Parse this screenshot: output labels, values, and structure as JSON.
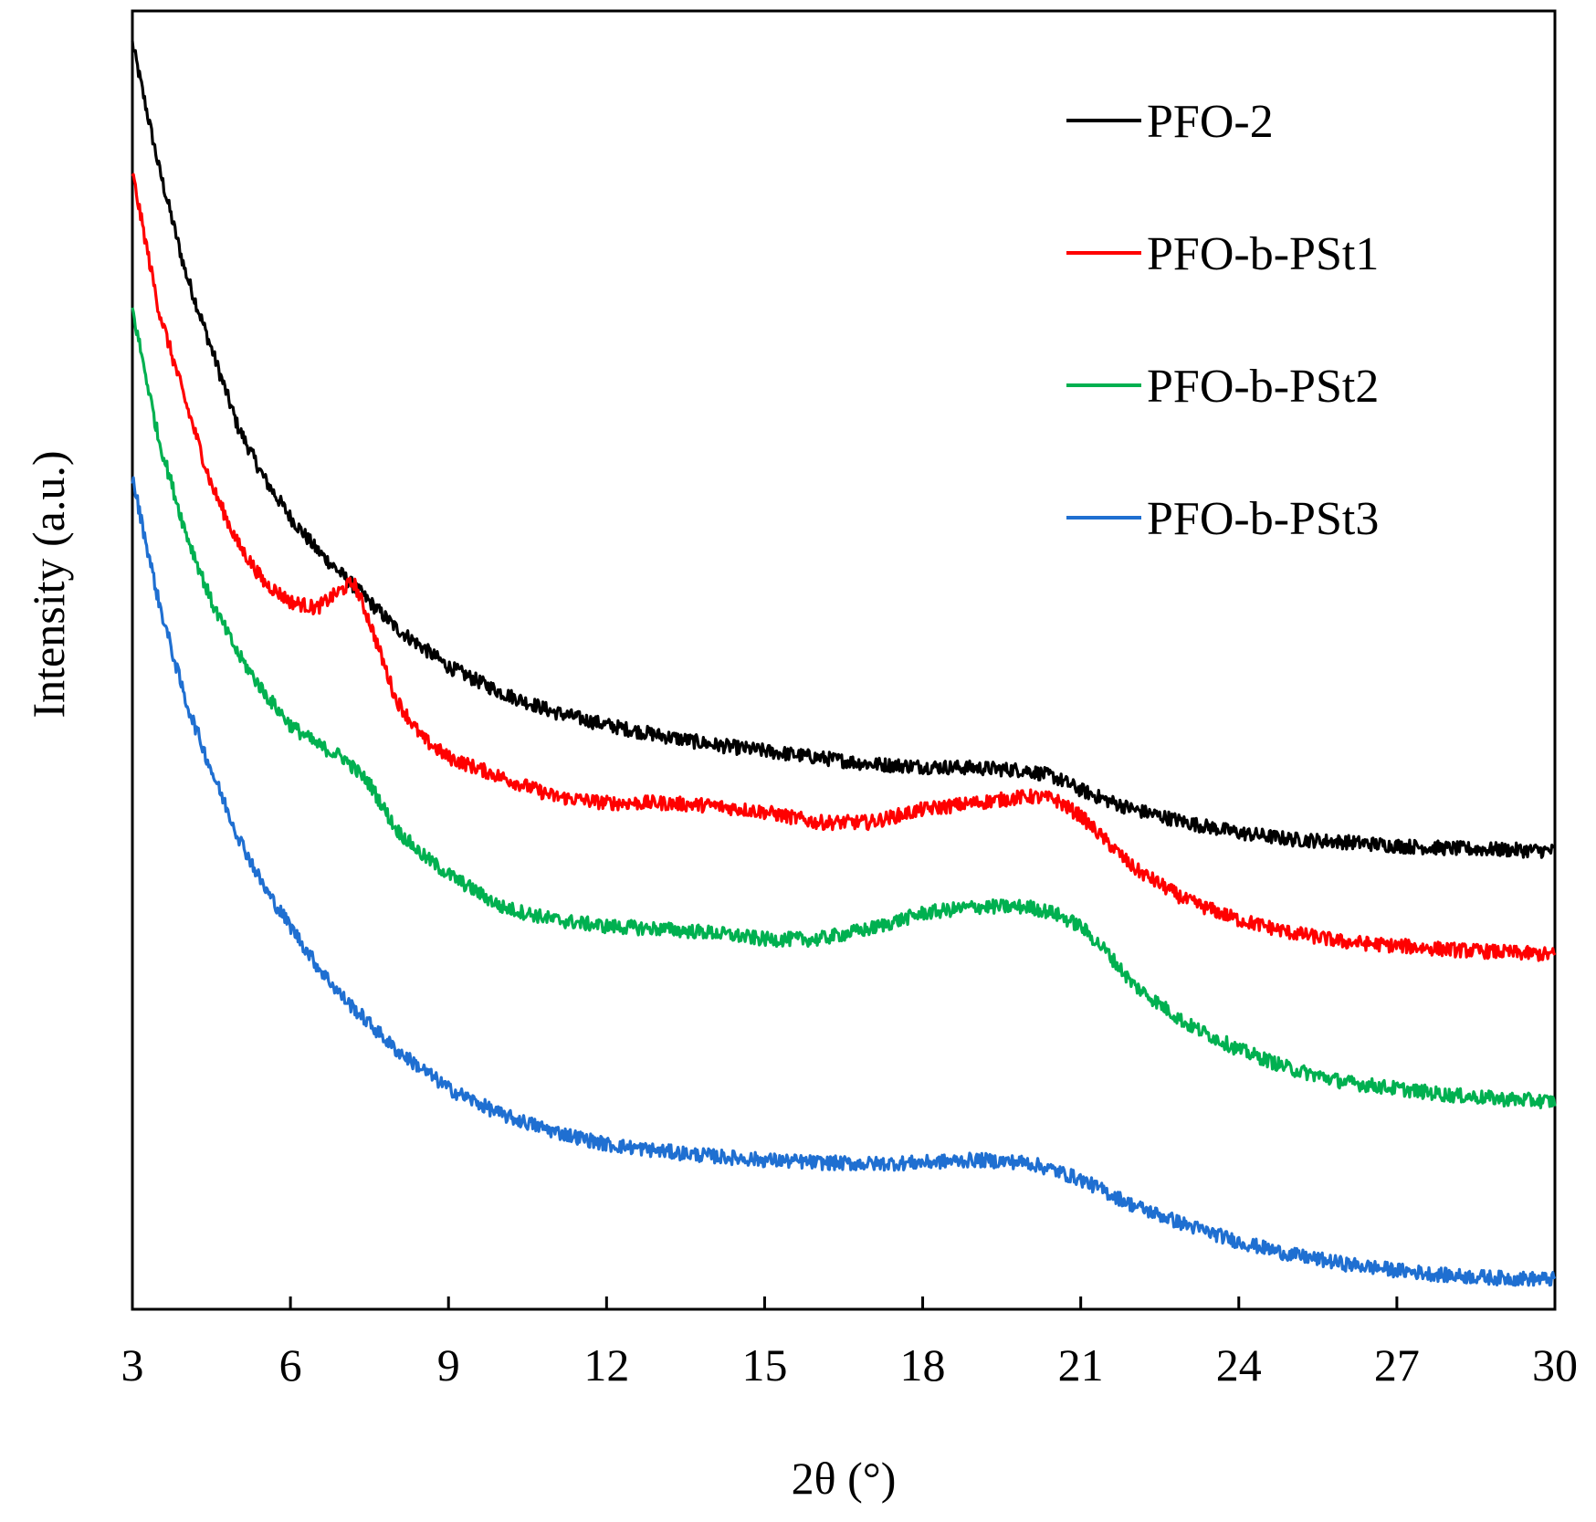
{
  "chart_data": {
    "type": "line",
    "title": "",
    "xlabel": "2θ (°)",
    "ylabel": "Intensity (a.u.)",
    "xlim": [
      3,
      30
    ],
    "ylim": [
      0,
      1
    ],
    "x_ticks": [
      3,
      6,
      9,
      12,
      15,
      18,
      21,
      24,
      27,
      30
    ],
    "x_tick_labels": [
      "3",
      "6",
      "9",
      "12",
      "15",
      "18",
      "21",
      "24",
      "27",
      "30"
    ],
    "y_ticks_shown": false,
    "grid": false,
    "legend_position": "top-right",
    "series": [
      {
        "name": "PFO-2",
        "color": "#000000",
        "x": [
          3,
          3.5,
          4,
          4.5,
          5,
          5.5,
          6,
          6.5,
          7,
          7.5,
          8,
          8.5,
          9,
          10,
          11,
          12,
          13,
          14,
          15,
          16,
          17,
          18,
          19,
          20,
          20.5,
          21,
          21.5,
          22,
          23,
          24,
          25,
          26,
          27,
          28,
          29,
          30
        ],
        "y": [
          0.975,
          0.88,
          0.8,
          0.74,
          0.68,
          0.64,
          0.61,
          0.585,
          0.565,
          0.545,
          0.525,
          0.51,
          0.495,
          0.475,
          0.46,
          0.45,
          0.442,
          0.435,
          0.43,
          0.425,
          0.42,
          0.418,
          0.417,
          0.415,
          0.41,
          0.4,
          0.392,
          0.385,
          0.375,
          0.367,
          0.362,
          0.36,
          0.357,
          0.355,
          0.354,
          0.353
        ]
      },
      {
        "name": "PFO-b-PSt1",
        "color": "#ff0000",
        "x": [
          3,
          3.5,
          4,
          4.5,
          5,
          5.5,
          6,
          6.5,
          7,
          7.2,
          7.5,
          8,
          8.5,
          9,
          10,
          11,
          12,
          13,
          14,
          15,
          16,
          17,
          18,
          19,
          20,
          20.5,
          21,
          21.5,
          22,
          23,
          24,
          25,
          26,
          27,
          28,
          29,
          30
        ],
        "y": [
          0.875,
          0.77,
          0.7,
          0.635,
          0.59,
          0.56,
          0.545,
          0.54,
          0.555,
          0.56,
          0.53,
          0.47,
          0.44,
          0.425,
          0.41,
          0.395,
          0.39,
          0.39,
          0.388,
          0.383,
          0.375,
          0.375,
          0.385,
          0.39,
          0.395,
          0.393,
          0.38,
          0.36,
          0.34,
          0.315,
          0.3,
          0.29,
          0.283,
          0.28,
          0.277,
          0.275,
          0.273
        ]
      },
      {
        "name": "PFO-b-PSt2",
        "color": "#00b050",
        "x": [
          3,
          3.5,
          4,
          4.5,
          5,
          5.5,
          6,
          6.5,
          7,
          7.5,
          8,
          8.5,
          9,
          10,
          11,
          12,
          13,
          14,
          15,
          16,
          17,
          18,
          19,
          20,
          20.5,
          21,
          21.5,
          22,
          23,
          24,
          25,
          26,
          27,
          28,
          29,
          30
        ],
        "y": [
          0.77,
          0.67,
          0.6,
          0.545,
          0.505,
          0.475,
          0.45,
          0.435,
          0.425,
          0.405,
          0.37,
          0.35,
          0.335,
          0.31,
          0.3,
          0.295,
          0.293,
          0.29,
          0.285,
          0.285,
          0.293,
          0.305,
          0.31,
          0.31,
          0.305,
          0.295,
          0.275,
          0.25,
          0.22,
          0.2,
          0.185,
          0.175,
          0.17,
          0.165,
          0.162,
          0.16
        ]
      },
      {
        "name": "PFO-b-PSt3",
        "color": "#1f6fd1",
        "x": [
          3,
          3.5,
          4,
          4.5,
          5,
          5.5,
          6,
          6.5,
          7,
          7.5,
          8,
          8.5,
          9,
          10,
          11,
          12,
          13,
          14,
          15,
          16,
          17,
          18,
          19,
          20,
          20.5,
          21,
          21.5,
          22,
          23,
          24,
          25,
          26,
          27,
          28,
          29,
          30
        ],
        "y": [
          0.64,
          0.545,
          0.47,
          0.415,
          0.365,
          0.325,
          0.295,
          0.265,
          0.24,
          0.22,
          0.2,
          0.185,
          0.17,
          0.15,
          0.137,
          0.127,
          0.122,
          0.118,
          0.115,
          0.113,
          0.112,
          0.113,
          0.115,
          0.113,
          0.107,
          0.1,
          0.09,
          0.08,
          0.065,
          0.052,
          0.042,
          0.035,
          0.03,
          0.026,
          0.024,
          0.023
        ]
      }
    ]
  }
}
